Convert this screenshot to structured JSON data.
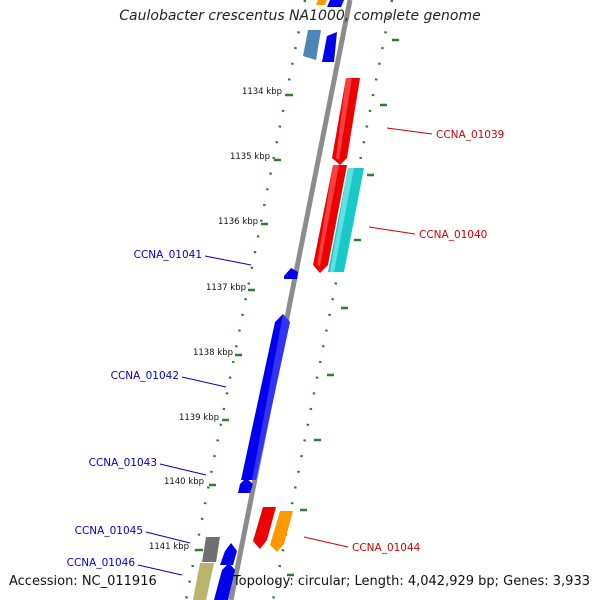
{
  "title": "Caulobacter crescentus NA1000, complete genome",
  "accession": "Accession: NC_011916",
  "summary": "Topology: circular; Length: 4,042,929 bp; Genes: 3,933",
  "colors": {
    "backbone": "#8c8c8c",
    "ticks": "#2e7d32",
    "forward_label": "#d40000",
    "reverse_label": "#0000cc",
    "gene_red": "#ee0000",
    "gene_cyan": "#19c9c9",
    "gene_blue": "#0000ee",
    "gene_orange": "#ff9900",
    "gene_gray": "#707070",
    "gene_steel": "#4f86b8",
    "gene_khaki": "#b8b46c"
  },
  "kbp_ticks": [
    "1134 kbp",
    "1135 kbp",
    "1136 kbp",
    "1137 kbp",
    "1138 kbp",
    "1139 kbp",
    "1140 kbp",
    "1141 kbp"
  ],
  "gene_labels": [
    {
      "name": "CCNA_01039",
      "strand": "forward"
    },
    {
      "name": "CCNA_01040",
      "strand": "forward"
    },
    {
      "name": "CCNA_01041",
      "strand": "reverse"
    },
    {
      "name": "CCNA_01042",
      "strand": "reverse"
    },
    {
      "name": "CCNA_01043",
      "strand": "reverse"
    },
    {
      "name": "CCNA_01044",
      "strand": "forward"
    },
    {
      "name": "CCNA_01045",
      "strand": "reverse"
    },
    {
      "name": "CCNA_01046",
      "strand": "reverse"
    }
  ]
}
